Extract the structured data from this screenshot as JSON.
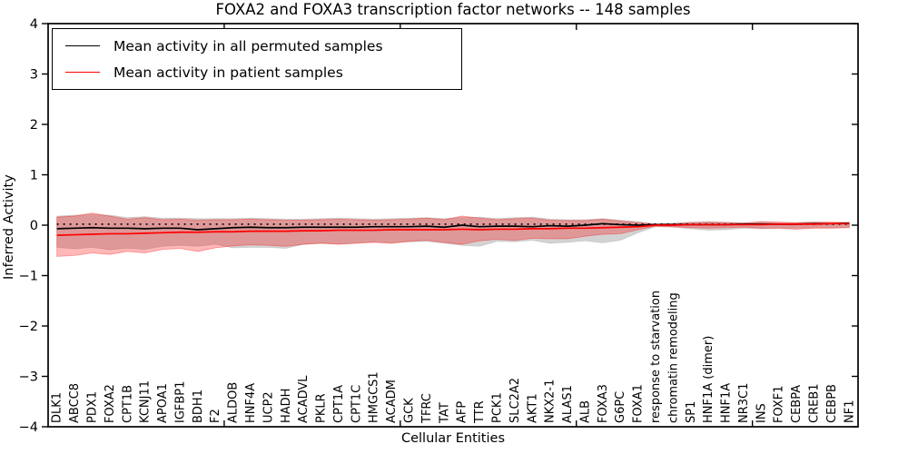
{
  "figure": {
    "title": "FOXA2 and FOXA3 transcription factor networks -- 148 samples",
    "xlabel": "Cellular Entities",
    "ylabel": "Inferred Activity"
  },
  "legend": {
    "items": [
      {
        "label": "Mean activity in all permuted samples",
        "color": "#000000"
      },
      {
        "label": "Mean activity in patient samples",
        "color": "#ff0000"
      }
    ]
  },
  "chart_data": {
    "type": "line",
    "title": "FOXA2 and FOXA3 transcription factor networks -- 148 samples",
    "xlabel": "Cellular Entities",
    "ylabel": "Inferred Activity",
    "ylim": [
      -4,
      4
    ],
    "ytick_labels": [
      "4",
      "3",
      "2",
      "1",
      "0",
      "−1",
      "−2",
      "−3",
      "−4"
    ],
    "x_range": [
      0,
      46
    ],
    "top_axis_ticks": [
      10,
      20,
      30,
      40
    ],
    "grid": false,
    "legend_position": "upper left",
    "categories": [
      "DLK1",
      "ABCC8",
      "PDX1",
      "FOXA2",
      "CPT1B",
      "KCNJ11",
      "APOA1",
      "IGFBP1",
      "BDH1",
      "F2",
      "ALDOB",
      "HNF4A",
      "UCP2",
      "HADH",
      "ACADVL",
      "PKLR",
      "CPT1A",
      "CPT1C",
      "HMGCS1",
      "ACADM",
      "GCK",
      "TFRC",
      "TAT",
      "AFP",
      "TTR",
      "PCK1",
      "SLC2A2",
      "AKT1",
      "NKX2-1",
      "ALAS1",
      "ALB",
      "FOXA3",
      "G6PC",
      "FOXA1",
      "response to starvation",
      "chromatin remodeling",
      "SP1",
      "HNF1A (dimer)",
      "HNF1A",
      "NR3C1",
      "INS",
      "FOXF1",
      "CEBPA",
      "CREB1",
      "CEBPB",
      "NF1"
    ],
    "series": [
      {
        "name": "Mean activity in all permuted samples",
        "color": "#000000",
        "style": "solid",
        "values": [
          -0.07,
          -0.06,
          -0.05,
          -0.06,
          -0.06,
          -0.07,
          -0.06,
          -0.06,
          -0.09,
          -0.07,
          -0.05,
          -0.04,
          -0.05,
          -0.05,
          -0.04,
          -0.04,
          -0.04,
          -0.04,
          -0.03,
          -0.03,
          -0.03,
          -0.02,
          -0.04,
          0.0,
          -0.03,
          -0.02,
          -0.02,
          -0.03,
          -0.01,
          -0.02,
          0.0,
          0.03,
          0.01,
          0.0,
          0.01,
          0.01,
          0.01,
          0.01,
          0.01,
          0.02,
          0.02,
          0.02,
          0.02,
          0.03,
          0.03,
          0.04
        ]
      },
      {
        "name": "Mean activity in patient samples",
        "color": "#ff0000",
        "style": "solid",
        "values": [
          -0.2,
          -0.19,
          -0.18,
          -0.17,
          -0.17,
          -0.16,
          -0.15,
          -0.14,
          -0.14,
          -0.13,
          -0.13,
          -0.12,
          -0.12,
          -0.12,
          -0.11,
          -0.11,
          -0.1,
          -0.1,
          -0.1,
          -0.09,
          -0.09,
          -0.09,
          -0.09,
          -0.08,
          -0.09,
          -0.08,
          -0.08,
          -0.07,
          -0.07,
          -0.06,
          -0.06,
          -0.05,
          -0.04,
          -0.03,
          0.0,
          0.0,
          0.01,
          0.01,
          0.01,
          0.01,
          0.01,
          0.02,
          0.02,
          0.02,
          0.03,
          0.03
        ]
      }
    ],
    "reference_line": {
      "name": "permuted baseline",
      "color": "#000000",
      "style": "dotted",
      "y": 0.02
    },
    "bands": [
      {
        "name": "permuted samples range",
        "fill": "rgba(128,128,128,0.35)",
        "stroke": "rgba(130,130,130,0.25)",
        "upper": [
          0.18,
          0.2,
          0.21,
          0.2,
          0.15,
          0.17,
          0.14,
          0.14,
          0.13,
          0.13,
          0.13,
          0.14,
          0.13,
          0.12,
          0.12,
          0.13,
          0.14,
          0.13,
          0.12,
          0.13,
          0.14,
          0.15,
          0.13,
          0.15,
          0.16,
          0.13,
          0.15,
          0.16,
          0.12,
          0.11,
          0.11,
          0.13,
          0.1,
          0.07,
          0.03,
          0.04,
          0.06,
          0.07,
          0.06,
          0.05,
          0.06,
          0.05,
          0.05,
          0.05,
          0.05,
          0.05
        ],
        "lower": [
          -0.44,
          -0.47,
          -0.44,
          -0.49,
          -0.46,
          -0.48,
          -0.42,
          -0.4,
          -0.42,
          -0.38,
          -0.45,
          -0.44,
          -0.44,
          -0.46,
          -0.38,
          -0.36,
          -0.37,
          -0.35,
          -0.33,
          -0.35,
          -0.33,
          -0.32,
          -0.36,
          -0.4,
          -0.42,
          -0.32,
          -0.33,
          -0.3,
          -0.36,
          -0.34,
          -0.31,
          -0.35,
          -0.3,
          -0.15,
          -0.03,
          -0.04,
          -0.07,
          -0.1,
          -0.09,
          -0.06,
          -0.07,
          -0.06,
          -0.06,
          -0.05,
          -0.05,
          -0.04
        ]
      },
      {
        "name": "patient samples range",
        "fill": "rgba(255,0,0,0.28)",
        "stroke": "rgba(255,0,0,0.35)",
        "upper": [
          0.16,
          0.18,
          0.24,
          0.18,
          0.12,
          0.15,
          0.11,
          0.12,
          0.1,
          0.11,
          0.11,
          0.12,
          0.11,
          0.1,
          0.1,
          0.11,
          0.12,
          0.11,
          0.1,
          0.11,
          0.12,
          0.14,
          0.11,
          0.18,
          0.14,
          0.11,
          0.13,
          0.14,
          0.1,
          0.09,
          0.09,
          0.12,
          0.08,
          0.05,
          0.02,
          0.03,
          0.05,
          0.06,
          0.05,
          0.04,
          0.07,
          0.06,
          0.05,
          0.06,
          0.06,
          0.05
        ],
        "lower": [
          -0.62,
          -0.6,
          -0.55,
          -0.58,
          -0.52,
          -0.55,
          -0.48,
          -0.46,
          -0.52,
          -0.45,
          -0.41,
          -0.39,
          -0.4,
          -0.42,
          -0.38,
          -0.36,
          -0.38,
          -0.36,
          -0.34,
          -0.36,
          -0.32,
          -0.3,
          -0.34,
          -0.38,
          -0.31,
          -0.28,
          -0.3,
          -0.26,
          -0.27,
          -0.27,
          -0.22,
          -0.18,
          -0.17,
          -0.09,
          -0.02,
          -0.03,
          -0.05,
          -0.06,
          -0.05,
          -0.04,
          -0.06,
          -0.06,
          -0.08,
          -0.06,
          -0.06,
          -0.05
        ]
      }
    ]
  }
}
